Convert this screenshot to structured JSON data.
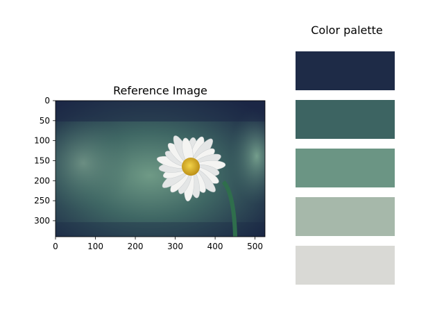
{
  "chart_data": [
    {
      "type": "image",
      "title": "Reference Image",
      "xlim": [
        0,
        525
      ],
      "ylim": [
        340,
        0
      ],
      "x_ticks": [
        0,
        100,
        200,
        300,
        400,
        500
      ],
      "y_ticks": [
        0,
        50,
        100,
        150,
        200,
        250,
        300
      ],
      "image_description_colors": {
        "background_dark": "#1e2a47",
        "background_teal": "#3d6360",
        "background_green": "#6a9484",
        "petal": "#f2f2f0",
        "center": "#d8a81c",
        "stem": "#2f6e4c"
      }
    },
    {
      "type": "palette",
      "title": "Color palette",
      "colors": [
        "#1e2b47",
        "#3d6462",
        "#6b9584",
        "#a6b8aa",
        "#d9d9d5"
      ]
    }
  ]
}
